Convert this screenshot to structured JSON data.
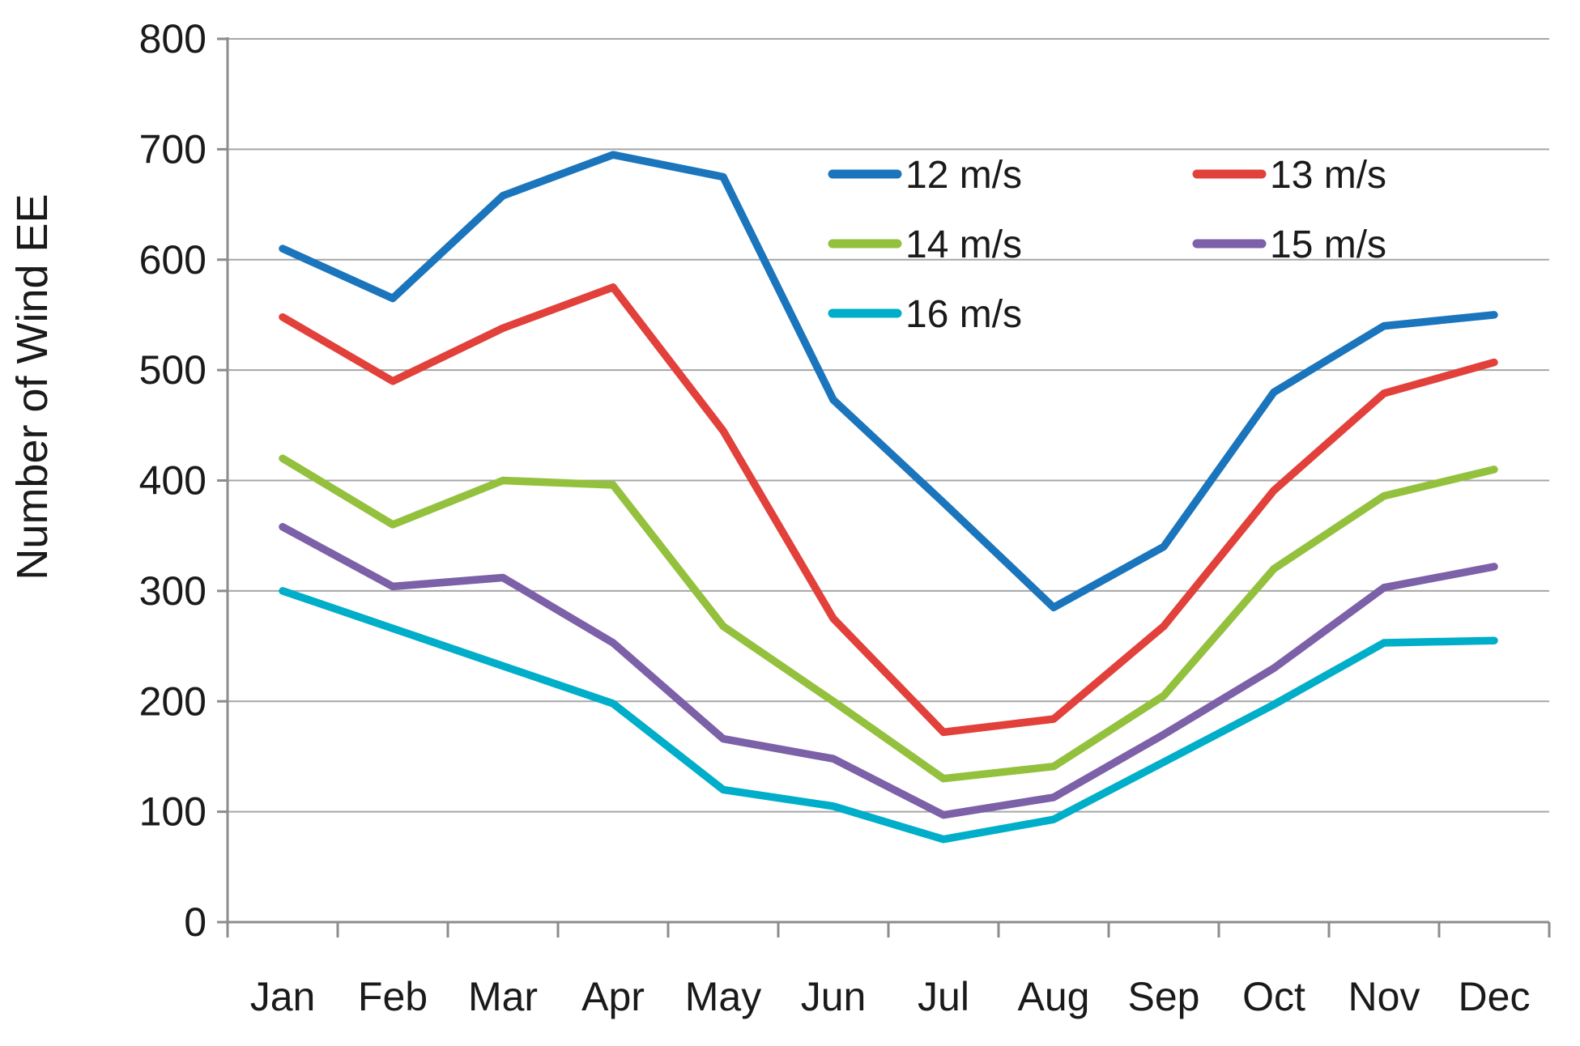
{
  "chart_data": {
    "type": "line",
    "title": "",
    "xlabel": "",
    "ylabel": "Number of Wind EE",
    "categories": [
      "Jan",
      "Feb",
      "Mar",
      "Apr",
      "May",
      "Jun",
      "Jul",
      "Aug",
      "Sep",
      "Oct",
      "Nov",
      "Dec"
    ],
    "series": [
      {
        "name": "12 m/s",
        "color": "#1b75bc",
        "values": [
          610,
          565,
          658,
          695,
          675,
          473,
          380,
          285,
          340,
          480,
          540,
          550
        ]
      },
      {
        "name": "13 m/s",
        "color": "#e2403a",
        "values": [
          548,
          490,
          538,
          575,
          445,
          275,
          172,
          184,
          268,
          391,
          479,
          507
        ]
      },
      {
        "name": "14 m/s",
        "color": "#94c13d",
        "values": [
          420,
          360,
          400,
          396,
          268,
          200,
          130,
          141,
          205,
          320,
          386,
          410
        ]
      },
      {
        "name": "15 m/s",
        "color": "#7c60a8",
        "values": [
          358,
          304,
          312,
          253,
          166,
          148,
          97,
          113,
          170,
          230,
          303,
          322
        ]
      },
      {
        "name": "16 m/s",
        "color": "#00aec9",
        "values": [
          300,
          266,
          232,
          198,
          120,
          105,
          75,
          93,
          145,
          197,
          253,
          255
        ]
      }
    ],
    "ylim": [
      0,
      800
    ],
    "ytick_step": 100,
    "y_tick_labels": [
      "0",
      "100",
      "200",
      "300",
      "400",
      "500",
      "600",
      "700",
      "800"
    ],
    "grid": true,
    "legend_position": "upper-center",
    "gridline_color": "#a6a6a6",
    "axis_color": "#8c8c8c",
    "text_color": "#1a1a1a"
  }
}
